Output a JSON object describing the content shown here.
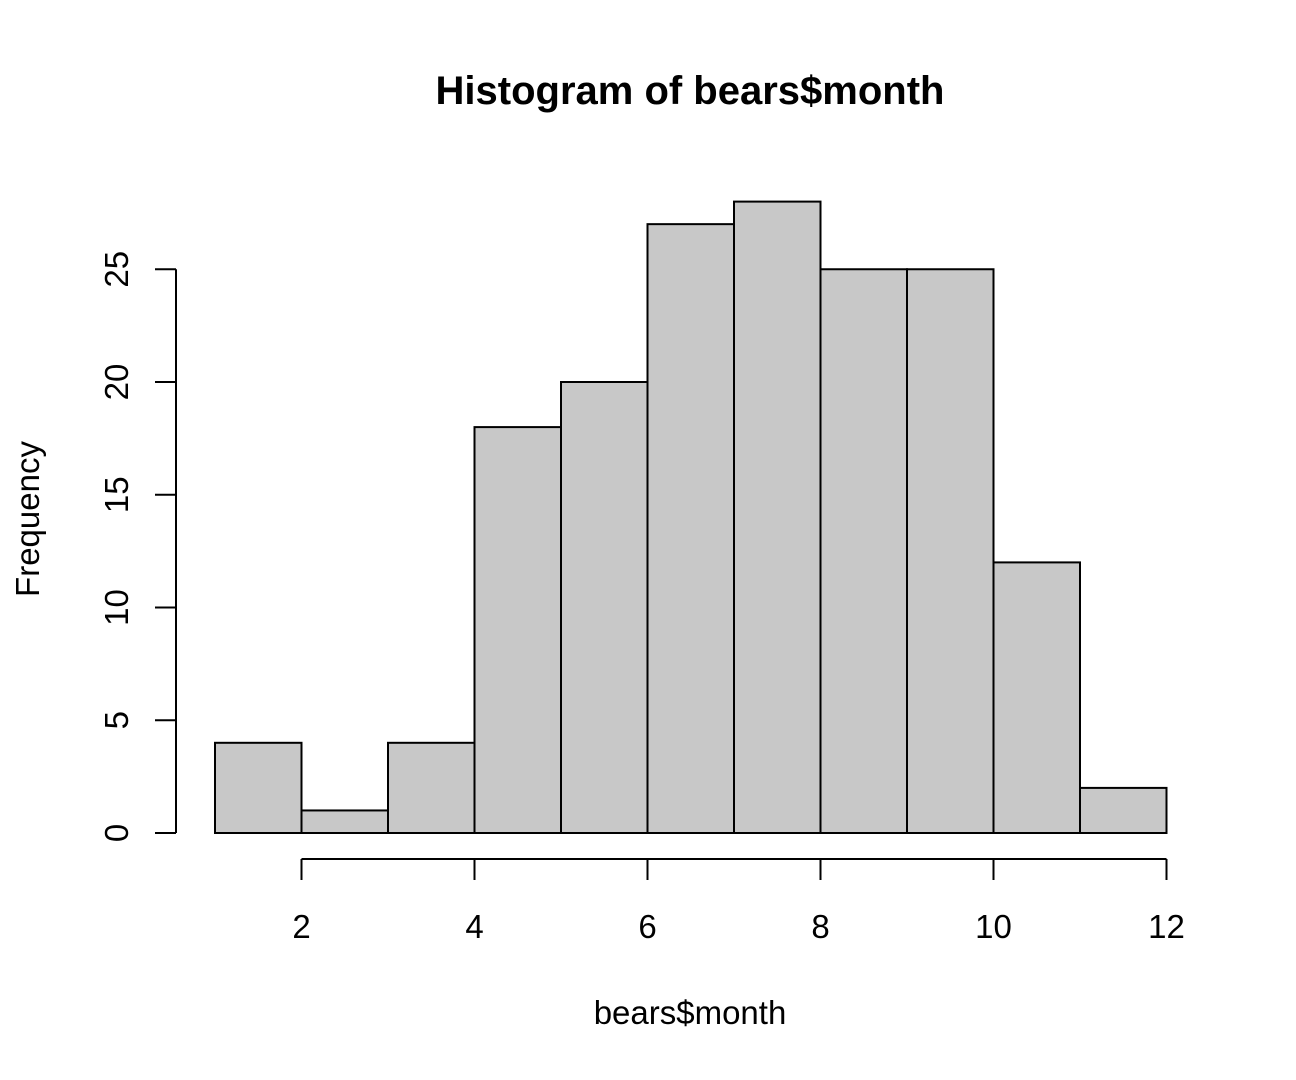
{
  "chart_data": {
    "type": "bar",
    "title": "Histogram of bears$month",
    "xlabel": "bears$month",
    "ylabel": "Frequency",
    "bins": [
      {
        "start": 1,
        "end": 2,
        "count": 4
      },
      {
        "start": 2,
        "end": 3,
        "count": 1
      },
      {
        "start": 3,
        "end": 4,
        "count": 4
      },
      {
        "start": 4,
        "end": 5,
        "count": 18
      },
      {
        "start": 5,
        "end": 6,
        "count": 20
      },
      {
        "start": 6,
        "end": 7,
        "count": 27
      },
      {
        "start": 7,
        "end": 8,
        "count": 28
      },
      {
        "start": 8,
        "end": 9,
        "count": 25
      },
      {
        "start": 9,
        "end": 10,
        "count": 25
      },
      {
        "start": 10,
        "end": 11,
        "count": 12
      },
      {
        "start": 11,
        "end": 12,
        "count": 2
      }
    ],
    "x_ticks": [
      2,
      4,
      6,
      8,
      10,
      12
    ],
    "x_tick_labels": [
      "2",
      "4",
      "6",
      "8",
      "10",
      "12"
    ],
    "y_ticks": [
      0,
      5,
      10,
      15,
      20,
      25
    ],
    "y_tick_labels": [
      "0",
      "5",
      "10",
      "15",
      "20",
      "25"
    ],
    "xlim": [
      1,
      12
    ],
    "ylim": [
      0,
      28
    ],
    "grid": false,
    "bar_color": "#c8c8c8",
    "edge_color": "#000000"
  }
}
